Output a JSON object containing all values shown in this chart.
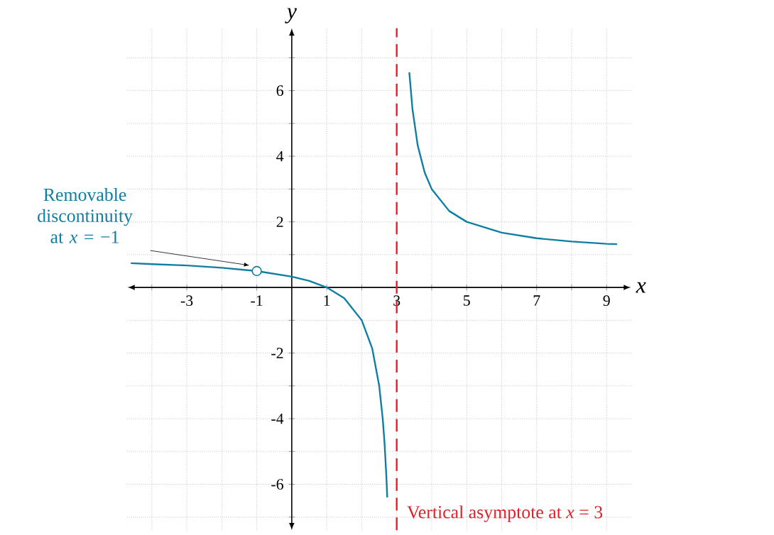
{
  "chart_data": {
    "type": "line",
    "xlabel": "x",
    "ylabel": "y",
    "xlim": [
      -4.7,
      9.7
    ],
    "ylim": [
      -7.4,
      7.9
    ],
    "xticks": [
      {
        "value": -4,
        "label": null
      },
      -3,
      {
        "value": -2,
        "label": null
      },
      -1,
      {
        "value": 0,
        "label": null
      },
      1,
      {
        "value": 2,
        "label": null
      },
      3,
      {
        "value": 4,
        "label": null
      },
      5,
      {
        "value": 6,
        "label": null
      },
      7,
      {
        "value": 8,
        "label": null
      },
      9
    ],
    "yticks": [
      {
        "value": -7,
        "label": null
      },
      -6,
      {
        "value": -5,
        "label": null
      },
      -4,
      {
        "value": -3,
        "label": null
      },
      -2,
      {
        "value": -1,
        "label": null
      },
      {
        "value": 0,
        "label": null
      },
      {
        "value": 1,
        "label": null
      },
      2,
      {
        "value": 3,
        "label": null
      },
      4,
      {
        "value": 5,
        "label": null
      },
      6,
      {
        "value": 7,
        "label": null
      }
    ],
    "grid": true,
    "series": [
      {
        "color": "#0f7ea3",
        "marker": "none",
        "x": [
          -4.6,
          -4,
          -3,
          -2,
          -1,
          0,
          0.5,
          1,
          1.5,
          2,
          2.3,
          2.5,
          2.6,
          2.65,
          2.7,
          2.73,
          null,
          3.36,
          3.45,
          3.6,
          3.8,
          4,
          4.5,
          5,
          6,
          7,
          8,
          9,
          9.3
        ],
        "values": [
          0.74,
          0.71,
          0.67,
          0.6,
          0.5,
          0.33,
          0.2,
          0,
          -0.33,
          -1,
          -1.86,
          -3,
          -4,
          -4.71,
          -5.67,
          -6.4,
          null,
          6.56,
          5.44,
          4.33,
          3.5,
          3,
          2.33,
          2,
          1.67,
          1.5,
          1.4,
          1.33,
          1.32
        ]
      },
      {
        "type": "scatter",
        "color": "#0f7ea3",
        "marker": "circle",
        "x": [
          -1
        ],
        "values": [
          0.5
        ]
      }
    ],
    "ref_lines": [
      {
        "axis": "x",
        "value": 3,
        "label": "Vertical asymptote at *x* = 3",
        "color": "#e0202a",
        "line_style": "dashed"
      }
    ],
    "annotations": [
      "Removable discontinuity at *x* = −1"
    ]
  }
}
